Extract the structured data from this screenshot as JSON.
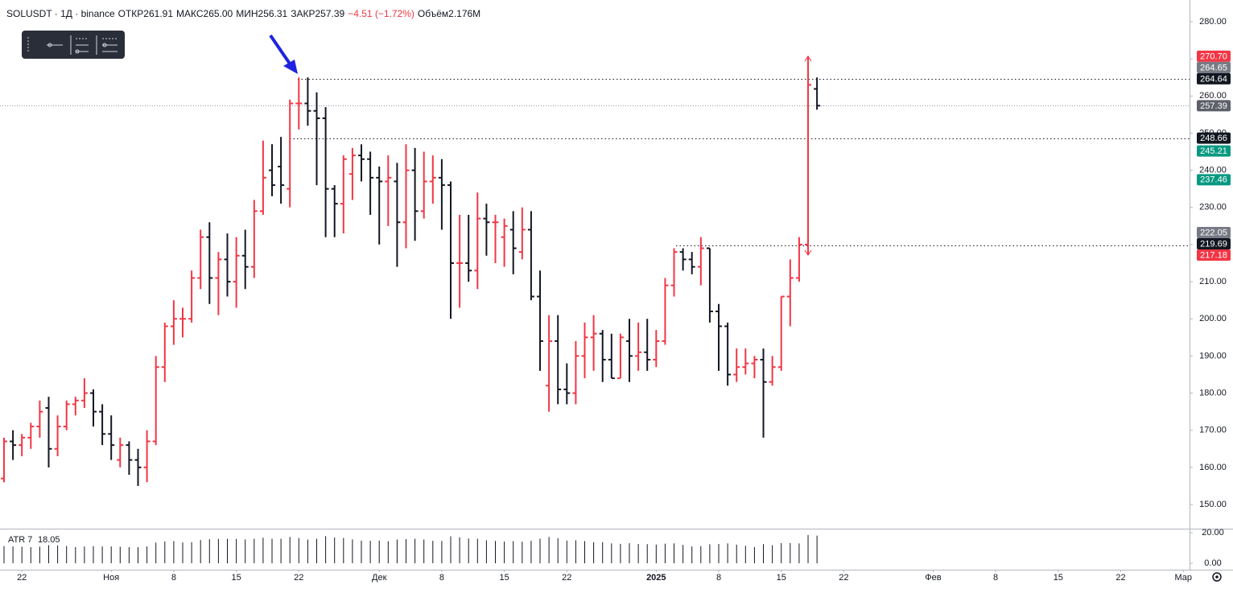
{
  "chart_data": {
    "type": "ohlc",
    "title": "SOLUSDT · 1Д · binance",
    "header": [
      {
        "label": "ОТКР",
        "value": "261.91"
      },
      {
        "label": "МАКС",
        "value": "265.00"
      },
      {
        "label": "МИН",
        "value": "256.31"
      },
      {
        "label": "ЗАКР",
        "value": "257.39"
      },
      {
        "label": "",
        "value": "−4.51 (−1.72%)"
      },
      {
        "label": "Объём",
        "value": "2.176M"
      }
    ],
    "open": [
      157,
      167,
      166,
      168,
      171,
      176,
      165,
      171,
      177,
      178,
      180,
      175,
      169,
      162,
      166,
      162,
      160,
      167,
      187,
      198,
      200,
      200,
      211,
      222,
      211,
      216,
      210,
      217,
      214,
      229,
      240,
      241,
      235,
      258,
      258,
      256,
      254,
      235,
      231,
      239,
      244,
      243,
      238,
      237,
      237,
      226,
      240,
      229,
      237,
      238,
      236,
      215,
      215,
      213,
      227,
      226,
      222,
      224,
      218,
      224,
      206,
      182,
      194,
      181,
      180,
      190,
      195,
      196,
      189,
      184,
      194,
      190,
      191,
      189,
      194,
      209,
      218,
      216,
      214,
      219,
      202,
      198,
      185,
      187,
      188,
      189,
      183,
      187,
      206,
      211,
      220,
      261.91
    ],
    "high": [
      168,
      170,
      169,
      172,
      178,
      179,
      174,
      178,
      179,
      184,
      181,
      177,
      174,
      168,
      167,
      165,
      170,
      190,
      199,
      205,
      203,
      213,
      224,
      226,
      218,
      223,
      222,
      224,
      232,
      248,
      247,
      249,
      259,
      265,
      265,
      261,
      257,
      236,
      244,
      246,
      247,
      245,
      241,
      244,
      242,
      247,
      246,
      245,
      244,
      243,
      237,
      228,
      228,
      234,
      231,
      228,
      227,
      229,
      230,
      229,
      213,
      201,
      201,
      188,
      194,
      199,
      201,
      197,
      196,
      196,
      200,
      199,
      200,
      197,
      211,
      219,
      219,
      218,
      222,
      219,
      204,
      199,
      192,
      192,
      190,
      192,
      190,
      206,
      216,
      222,
      270.7,
      265
    ],
    "low": [
      156,
      162,
      163,
      165,
      168,
      160,
      163,
      170,
      174,
      176,
      171,
      166,
      162,
      160,
      158,
      155,
      156,
      166,
      183,
      193,
      195,
      199,
      208,
      204,
      201,
      206,
      203,
      208,
      211,
      228,
      233,
      231,
      230,
      251,
      252,
      236,
      222,
      222,
      223,
      232,
      237,
      228,
      220,
      225,
      214,
      219,
      221,
      227,
      231,
      224,
      200,
      203,
      210,
      208,
      217,
      215,
      214,
      212,
      216,
      205,
      186,
      175,
      177,
      177,
      177,
      184,
      186,
      183,
      184,
      184,
      183,
      186,
      186,
      187,
      193,
      206,
      213,
      212,
      209,
      199,
      186,
      182,
      183,
      185,
      184,
      168,
      182,
      186,
      198,
      210,
      217.18,
      256.31
    ],
    "close": [
      167,
      166,
      168,
      171,
      175,
      165,
      171,
      177,
      178,
      180,
      175,
      169,
      166,
      166,
      162,
      160,
      167,
      187,
      198,
      200,
      200,
      211,
      222,
      211,
      216,
      210,
      217,
      214,
      229,
      238,
      236,
      236,
      258,
      258,
      256,
      254,
      235,
      231,
      243,
      244,
      243,
      238,
      237,
      238,
      226,
      240,
      229,
      237,
      238,
      236,
      215,
      215,
      213,
      227,
      226,
      226,
      225,
      219,
      224,
      206,
      194,
      194,
      181,
      180,
      190,
      195,
      196,
      189,
      184,
      195,
      190,
      191,
      189,
      194,
      209,
      218,
      216,
      214,
      219,
      202,
      198,
      185,
      187,
      188,
      189,
      183,
      187,
      206,
      211,
      220,
      263,
      257.39
    ],
    "up_color": "#f23645",
    "down_color": "#131722",
    "xlim": [
      -0.45,
      132.7
    ],
    "xticks": [
      {
        "value": 2,
        "label": "22"
      },
      {
        "value": 12,
        "label": "Ноя"
      },
      {
        "value": 19,
        "label": "8"
      },
      {
        "value": 26,
        "label": "15"
      },
      {
        "value": 33,
        "label": "22"
      },
      {
        "value": 42,
        "label": "Дек"
      },
      {
        "value": 49,
        "label": "8"
      },
      {
        "value": 56,
        "label": "15"
      },
      {
        "value": 63,
        "label": "22"
      },
      {
        "value": 73,
        "label": "2025"
      },
      {
        "value": 80,
        "label": "8"
      },
      {
        "value": 87,
        "label": "15"
      },
      {
        "value": 94,
        "label": "22"
      },
      {
        "value": 104,
        "label": "Фев"
      },
      {
        "value": 111,
        "label": "8"
      },
      {
        "value": 118,
        "label": "15"
      },
      {
        "value": 125,
        "label": "22"
      },
      {
        "value": 132,
        "label": "Мар"
      }
    ],
    "ylim": [
      143.5,
      285.85
    ],
    "yticks": [
      {
        "value": 150,
        "label": "150.00"
      },
      {
        "value": 160,
        "label": "160.00"
      },
      {
        "value": 170,
        "label": "170.00"
      },
      {
        "value": 180,
        "label": "180.00"
      },
      {
        "value": 190,
        "label": "190.00"
      },
      {
        "value": 200,
        "label": "200.00"
      },
      {
        "value": 210,
        "label": "210.00"
      },
      {
        "value": 220,
        "label": "220.00"
      },
      {
        "value": 230,
        "label": "230.00"
      },
      {
        "value": 240,
        "label": "240.00"
      },
      {
        "value": 250,
        "label": "250.00"
      },
      {
        "value": 260,
        "label": "260.00"
      },
      {
        "value": 270,
        "label": "270.00"
      },
      {
        "value": 280,
        "label": "280.00"
      }
    ],
    "price_labels": [
      {
        "value": 270.7,
        "label": "270.70",
        "color": "#f23645"
      },
      {
        "value": 264.65,
        "label": "264.65",
        "color": "#787b86"
      },
      {
        "value": 264.64,
        "label": "264.64",
        "color": "#131722"
      },
      {
        "value": 257.39,
        "label": "257.39",
        "color": "#5d606b"
      },
      {
        "value": 248.66,
        "label": "248.66",
        "color": "#131722"
      },
      {
        "value": 245.21,
        "label": "245.21",
        "color": "#089981"
      },
      {
        "value": 237.46,
        "label": "237.46",
        "color": "#089981"
      },
      {
        "value": 222.05,
        "label": "222.05",
        "color": "#787b86"
      },
      {
        "value": 219.69,
        "label": "219.69",
        "color": "#131722"
      },
      {
        "value": 217.18,
        "label": "217.18",
        "color": "#f23645"
      }
    ],
    "atr": {
      "title": "ATR 7",
      "color": "#131722",
      "ylim": [
        -4.2,
        22.1
      ],
      "yticks": [
        {
          "value": 0,
          "label": "0.00"
        },
        {
          "value": 20,
          "label": "20.00"
        }
      ],
      "values": [
        11.2,
        11.0,
        10.8,
        10.5,
        10.9,
        11.8,
        11.7,
        11.3,
        10.6,
        11.0,
        11.2,
        11.0,
        11.0,
        10.8,
        10.5,
        10.5,
        11.0,
        13.5,
        14.2,
        14.5,
        13.6,
        13.8,
        15.2,
        15.7,
        15.9,
        16.0,
        15.9,
        15.6,
        16.0,
        16.7,
        16.0,
        16.0,
        17.2,
        16.5,
        15.5,
        16.0,
        17.7,
        16.8,
        16.5,
        15.6,
        14.8,
        14.7,
        14.8,
        14.4,
        15.5,
        15.8,
        16.0,
        15.5,
        14.7,
        14.6,
        17.6,
        17.0,
        16.2,
        16.0,
        15.0,
        14.6,
        14.2,
        14.5,
        14.1,
        14.7,
        16.1,
        17.2,
        16.4,
        14.8,
        15.0,
        14.5,
        13.8,
        13.8,
        13.0,
        12.7,
        13.1,
        12.6,
        12.5,
        12.2,
        12.8,
        13.0,
        12.0,
        11.0,
        11.2,
        12.4,
        12.6,
        13.0,
        12.2,
        11.4,
        10.6,
        12.5,
        11.8,
        13.2,
        13.2,
        13.0,
        18.5,
        18.05
      ]
    }
  }
}
